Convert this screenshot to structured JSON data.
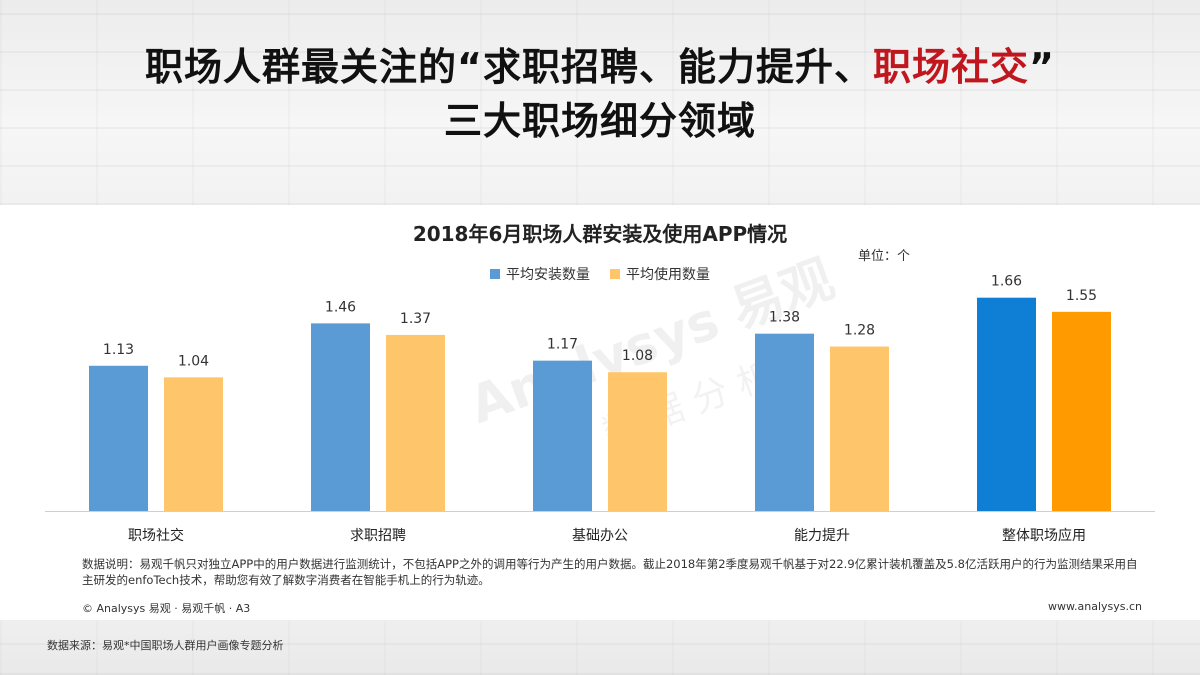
{
  "headline": {
    "line1_a": "职场人群最关注的“求职招聘、能力提升、",
    "line1_red": "职场社交",
    "line1_b": "”",
    "line2": "三大职场细分领域"
  },
  "colors": {
    "series1": "#5b9bd5",
    "series2": "#ffc56b",
    "highlight1": "#0f7fd6",
    "highlight2": "#ff9b00",
    "headline_red": "#c0161d"
  },
  "chart_data": {
    "type": "bar",
    "title": "2018年6月职场人群安装及使用APP情况",
    "unit": "单位：个",
    "categories": [
      "职场社交",
      "求职招聘",
      "基础办公",
      "能力提升",
      "整体职场应用"
    ],
    "series": [
      {
        "name": "平均安装数量",
        "values": [
          1.13,
          1.46,
          1.17,
          1.38,
          1.66
        ]
      },
      {
        "name": "平均使用数量",
        "values": [
          1.04,
          1.37,
          1.08,
          1.28,
          1.55
        ]
      }
    ],
    "value_labels": [
      [
        "1.13",
        "1.46",
        "1.17",
        "1.38",
        "1.66"
      ],
      [
        "1.04",
        "1.37",
        "1.08",
        "1.28",
        "1.55"
      ]
    ],
    "highlight_category": "整体职场应用",
    "ylim": [
      0,
      1.9
    ],
    "grid": false,
    "legend_position": "top"
  },
  "watermark": {
    "line1": "Analysys 易观",
    "line2": "你 的 数 据 分 析"
  },
  "note": "数据说明：易观千帆只对独立APP中的用户数据进行监测统计，不包括APP之外的调用等行为产生的用户数据。截止2018年第2季度易观千帆基于对22.9亿累计装机覆盖及5.8亿活跃用户的行为监测结果采用自主研发的enfoTech技术，帮助您有效了解数字消费者在智能手机上的行为轨迹。",
  "footer": {
    "left": "© Analysys 易观 · 易观千帆 · A3",
    "right": "www.analysys.cn"
  },
  "source": "数据来源：易观*中国职场人群用户画像专题分析"
}
